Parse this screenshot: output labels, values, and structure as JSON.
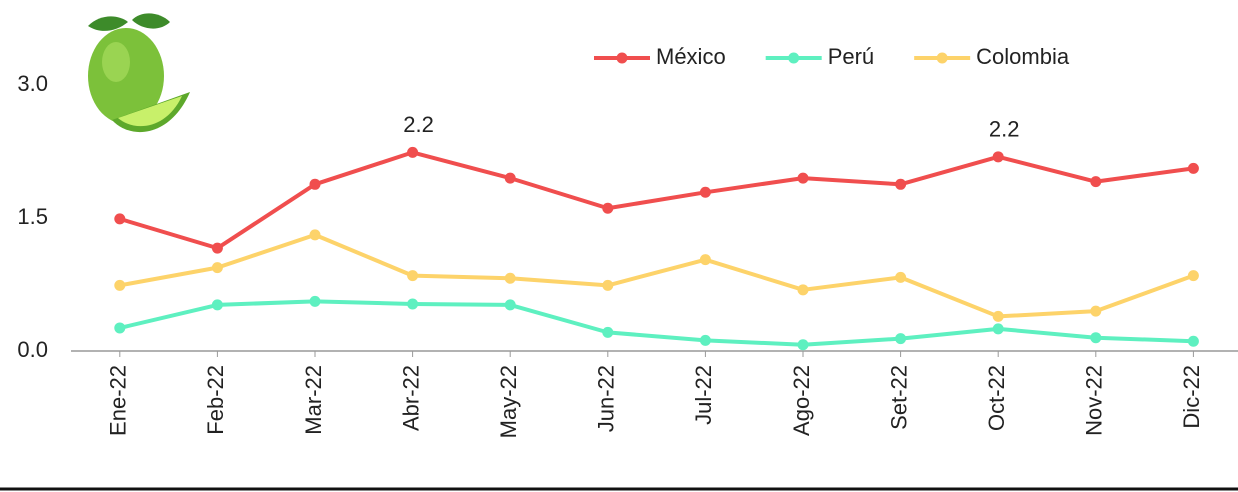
{
  "chart_data": {
    "type": "line",
    "categories": [
      "Ene-22",
      "Feb-22",
      "Mar-22",
      "Abr-22",
      "May-22",
      "Jun-22",
      "Jul-22",
      "Ago-22",
      "Set-22",
      "Oct-22",
      "Nov-22",
      "Dic-22"
    ],
    "series": [
      {
        "name": "México",
        "color": "#f04e4e",
        "values": [
          1.49,
          1.16,
          1.88,
          2.24,
          1.95,
          1.61,
          1.79,
          1.95,
          1.88,
          2.19,
          1.91,
          2.06
        ],
        "value_labels": [
          null,
          null,
          null,
          "2.2",
          null,
          null,
          null,
          null,
          null,
          "2.2",
          null,
          null
        ]
      },
      {
        "name": "Perú",
        "color": "#5ef0c0",
        "values": [
          0.26,
          0.52,
          0.56,
          0.53,
          0.52,
          0.21,
          0.12,
          0.07,
          0.14,
          0.25,
          0.15,
          0.11
        ]
      },
      {
        "name": "Colombia",
        "color": "#fdd36a",
        "values": [
          0.74,
          0.94,
          1.31,
          0.85,
          0.82,
          0.74,
          1.03,
          0.69,
          0.83,
          0.39,
          0.45,
          0.85
        ]
      }
    ],
    "ylim": [
      0,
      3.0
    ],
    "yticks": [
      {
        "value": 0,
        "label": "0.0"
      },
      {
        "value": 1.5,
        "label": "1.5"
      },
      {
        "value": 3.0,
        "label": "3.0"
      }
    ],
    "grid": false,
    "legend": "top-right"
  }
}
